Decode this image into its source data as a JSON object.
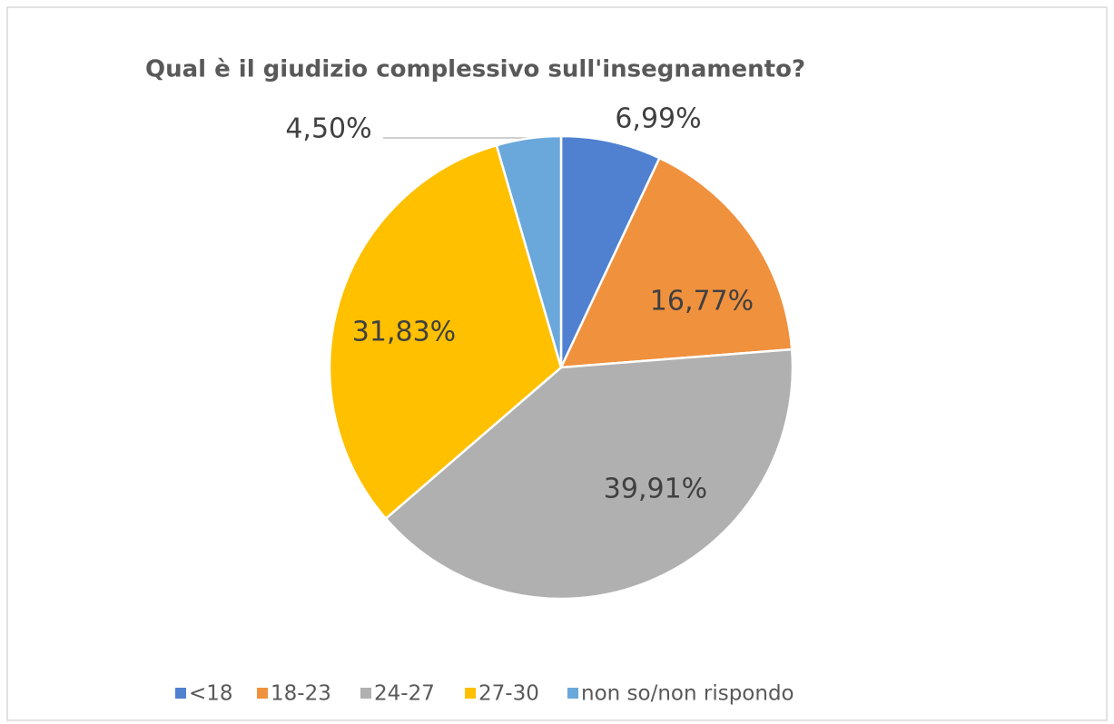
{
  "chart_data": {
    "type": "pie",
    "title": "Qual è il giudizio complessivo sull'insegnamento?",
    "categories": [
      "<18",
      "18-23",
      "24-27",
      "27-30",
      "non so/non rispondo"
    ],
    "values": [
      6.99,
      16.77,
      39.91,
      31.83,
      4.5
    ],
    "value_labels": [
      "6,99%",
      "16,77%",
      "39,91%",
      "31,83%",
      "4,50%"
    ],
    "colors": [
      "#4f81d0",
      "#f0913e",
      "#b0b0b0",
      "#ffc000",
      "#6aa8db"
    ],
    "legend": "bottom"
  }
}
